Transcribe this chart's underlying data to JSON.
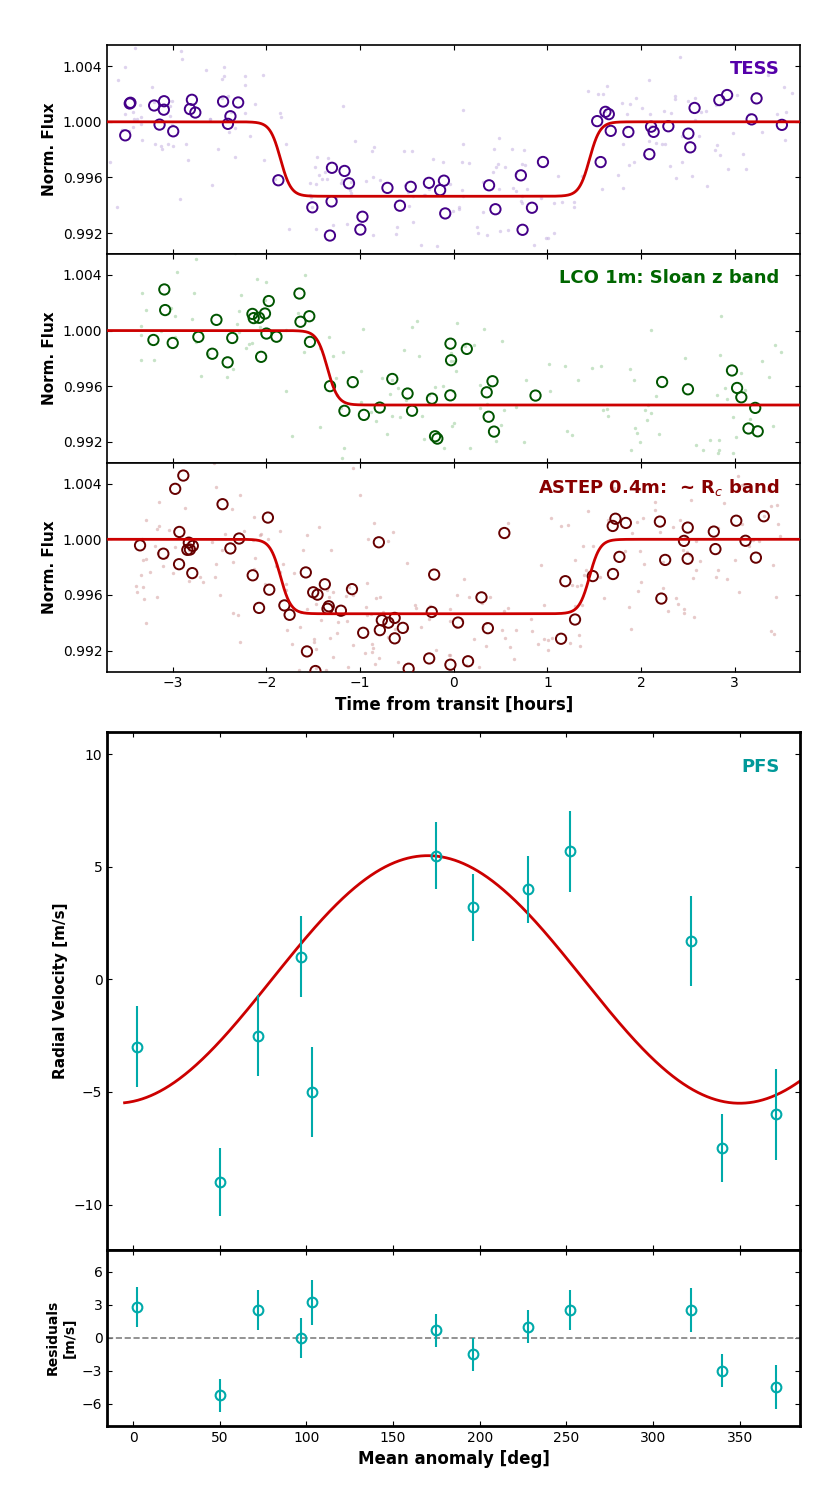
{
  "tess": {
    "label": "TESS",
    "label_color": "#5500aa",
    "scatter_color": "#c4b0e0",
    "binned_color": "#440088",
    "model_color": "#cc0000",
    "ylim": [
      0.9905,
      1.0055
    ],
    "yticks": [
      0.992,
      0.996,
      1.0,
      1.004
    ],
    "xlim": [
      -3.7,
      3.7
    ],
    "xticks": [
      -3,
      -2,
      -1,
      0,
      1,
      2,
      3
    ],
    "transit_depth": 0.00535,
    "t_ingress": -1.85,
    "t_egress": 1.45,
    "smooth": 0.28
  },
  "lco": {
    "label": "LCO 1m: Sloan z band",
    "label_color": "#006600",
    "scatter_color": "#99cc99",
    "binned_color": "#005500",
    "model_color": "#cc0000",
    "ylim": [
      0.9905,
      1.0055
    ],
    "yticks": [
      0.992,
      0.996,
      1.0,
      1.004
    ],
    "xlim": [
      -3.7,
      3.7
    ],
    "xticks": [
      -3,
      -2,
      -1,
      0,
      1,
      2,
      3
    ],
    "transit_depth": 0.00535,
    "t_ingress": -1.35,
    "t_egress": 99.0,
    "smooth": 0.28
  },
  "astep": {
    "label": "ASTEP 0.4m:  ~ R_c band",
    "label_color": "#880000",
    "scatter_color": "#d4a0a0",
    "binned_color": "#660000",
    "model_color": "#cc0000",
    "ylim": [
      0.9905,
      1.0055
    ],
    "yticks": [
      0.992,
      0.996,
      1.0,
      1.004
    ],
    "xlim": [
      -3.7,
      3.7
    ],
    "xticks": [
      -3,
      -2,
      -1,
      0,
      1,
      2,
      3
    ],
    "transit_depth": 0.00535,
    "t_ingress": -1.85,
    "t_egress": 1.45,
    "smooth": 0.28
  },
  "rv": {
    "label": "PFS",
    "label_color": "#009999",
    "data_color": "#00aaaa",
    "model_color": "#cc0000",
    "ylim": [
      -12,
      11
    ],
    "yticks": [
      -10,
      -5,
      0,
      5,
      10
    ],
    "xlim": [
      -15,
      385
    ],
    "xticks": [
      0,
      50,
      100,
      150,
      200,
      250,
      300,
      350
    ],
    "amplitude": 5.5,
    "points_phase": [
      2,
      50,
      72,
      97,
      103,
      175,
      196,
      228,
      252,
      322,
      340,
      371
    ],
    "points_rv": [
      -3.0,
      -9.0,
      -2.5,
      1.0,
      -5.0,
      5.5,
      3.2,
      4.0,
      5.7,
      1.7,
      -7.5,
      -6.0
    ],
    "points_err": [
      1.8,
      1.5,
      1.8,
      1.8,
      2.0,
      1.5,
      1.5,
      1.5,
      1.8,
      2.0,
      1.5,
      2.0
    ],
    "resid_phase": [
      2,
      50,
      72,
      97,
      103,
      175,
      196,
      228,
      252,
      322,
      340,
      371
    ],
    "resid_rv": [
      2.8,
      -5.2,
      2.5,
      0.0,
      3.2,
      0.7,
      -1.5,
      1.0,
      2.5,
      2.5,
      -3.0,
      -4.5
    ],
    "resid_err": [
      1.8,
      1.5,
      1.8,
      1.8,
      2.0,
      1.5,
      1.5,
      1.5,
      1.8,
      2.0,
      1.5,
      2.0
    ],
    "resid_ylim": [
      -8,
      8
    ],
    "resid_yticks": [
      -6,
      -3,
      0,
      3,
      6
    ]
  },
  "xlabel_phot": "Time from transit [hours]",
  "xlabel_rv": "Mean anomaly [deg]",
  "ylabel_phot": "Norm. Flux",
  "ylabel_rv": "Radial Velocity [m/s]",
  "ylabel_resid": "Residuals\n[m/s]",
  "background_color": "#ffffff",
  "fig_width": 8.25,
  "fig_height": 15.09
}
